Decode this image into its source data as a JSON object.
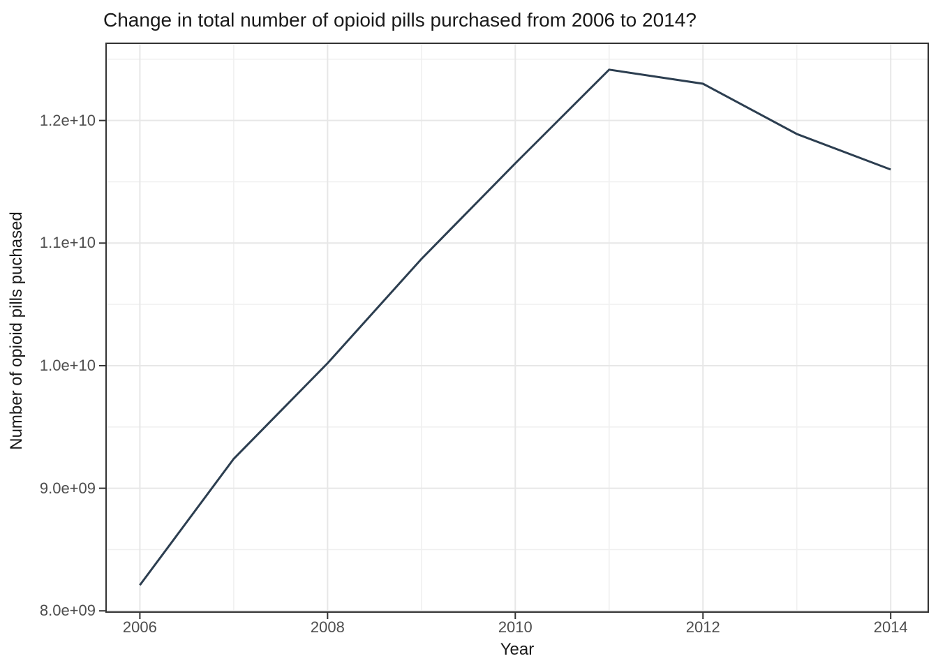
{
  "title": "Change in total number of opioid pills purchased from 2006 to 2014?",
  "chart_data": {
    "type": "line",
    "title": "Change in total number of opioid pills purchased from 2006 to 2014?",
    "xlabel": "Year",
    "ylabel": "Number of opioid pills puchased",
    "x": [
      2006,
      2007,
      2008,
      2009,
      2010,
      2011,
      2012,
      2013,
      2014
    ],
    "values": [
      8210000000,
      9240000000,
      10020000000,
      10870000000,
      11650000000,
      12415000000,
      12300000000,
      11890000000,
      11600000000
    ],
    "xlim": [
      2005.64,
      2014.4
    ],
    "ylim": [
      7990000000,
      12630000000
    ],
    "x_major_ticks": [
      2006,
      2008,
      2010,
      2012,
      2014
    ],
    "x_minor_ticks": [
      2007,
      2009,
      2011,
      2013
    ],
    "x_tick_labels": [
      "2006",
      "2008",
      "2010",
      "2012",
      "2014"
    ],
    "y_major_ticks": [
      8000000000,
      9000000000,
      10000000000,
      11000000000,
      12000000000
    ],
    "y_minor_ticks": [
      8500000000,
      9500000000,
      10500000000,
      11500000000,
      12500000000
    ],
    "y_tick_labels": [
      "8.0e+09",
      "9.0e+09",
      "1.0e+10",
      "1.1e+10",
      "1.2e+10"
    ],
    "grid": true,
    "legend_shown": false,
    "colors": {
      "line": "#2c3e50",
      "grid_major": "#e7e7e7",
      "grid_minor": "#f0f0f0",
      "panel_border": "#333333",
      "tick_mark": "#333333",
      "axis_text": "#4d4d4d",
      "title_text": "#1a1a1a",
      "panel_background": "#ffffff"
    }
  }
}
